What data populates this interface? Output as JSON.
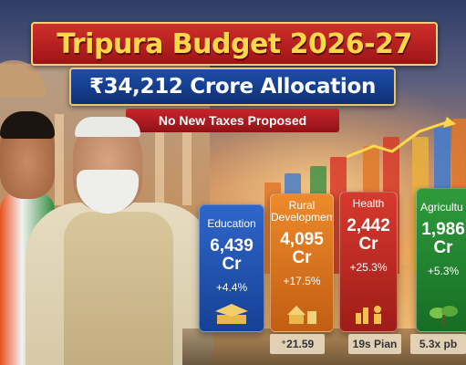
{
  "header": {
    "title": "Tripura Budget 2026-27",
    "allocation": "₹34,212 Crore Allocation",
    "tagline": "No New Taxes Proposed"
  },
  "cards": [
    {
      "name": "Education",
      "value_line1": "6,439",
      "value_line2": "Cr",
      "change": "+4.4%",
      "icon": "graduation-icon",
      "color": "#2f66c9"
    },
    {
      "name_line1": "Rural",
      "name_line2": "Development",
      "value_line1": "4,095",
      "value_line2": "Cr",
      "change": "+17.5%",
      "icon": "village-icon",
      "color": "#ec8a2b"
    },
    {
      "name": "Health",
      "value_line1": "2,442",
      "value_line2": "Cr",
      "change": "+25.3%",
      "icon": "health-icon",
      "color": "#d63a2e"
    },
    {
      "name": "Agricultu",
      "value_line1": "1,986",
      "value_line2": "Cr",
      "change": "+5.3%",
      "icon": "plant-icon",
      "color": "#2f9b3c"
    }
  ],
  "plates": [
    "⁺21.59",
    "19s Pian",
    "5.3x pb"
  ],
  "colors": {
    "title_red": "#b81e21",
    "title_gold": "#ffd84a",
    "alloc_blue": "#1d4ea7"
  }
}
